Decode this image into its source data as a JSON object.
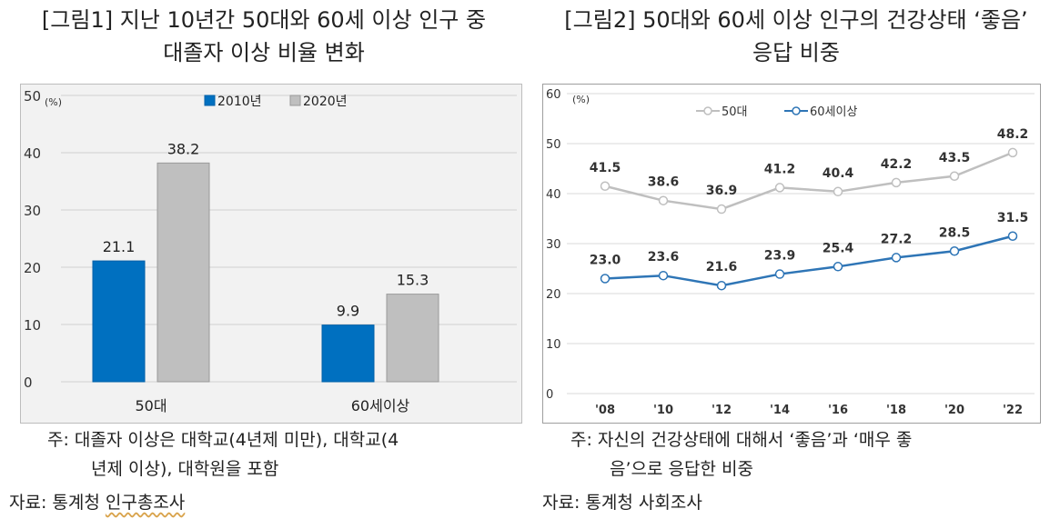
{
  "chart1": {
    "title_line1": "[그림1] 지난 10년간 50대와 60세 이상 인구 중",
    "title_line2": "대졸자 이상 비율 변화",
    "unit": "(%)",
    "note_line1": "주: 대졸자 이상은 대학교(4년제 미만), 대학교(4",
    "note_line2": "년제 이상), 대학원을 포함",
    "source_prefix": "자료: 통계청 ",
    "source_name": "인구총조사"
  },
  "chart2": {
    "title_line1": "[그림2] 50대와 60세 이상 인구의 건강상태 ‘좋음’",
    "title_line2": "응답 비중",
    "unit": "(%)",
    "note_line1": "주: 자신의 건강상태에 대해서 ‘좋음’과 ‘매우 좋",
    "note_line2": "음’으로 응답한 비중",
    "source": "자료: 통계청 사회조사"
  },
  "colors": {
    "blue": "#0070c0",
    "gray": "#bfbfbf",
    "line_gray": "#bfbfbf",
    "line_blue": "#2e75b6"
  },
  "chart_data": [
    {
      "type": "bar",
      "categories": [
        "50대",
        "60세이상"
      ],
      "series": [
        {
          "name": "2010년",
          "values": [
            21.1,
            9.9
          ]
        },
        {
          "name": "2020년",
          "values": [
            38.2,
            15.3
          ]
        }
      ],
      "ylim": [
        0,
        50
      ],
      "yticks": [
        0,
        10,
        20,
        30,
        40,
        50
      ],
      "legend": "top",
      "grid": true
    },
    {
      "type": "line",
      "x": [
        "'08",
        "'10",
        "'12",
        "'14",
        "'16",
        "'18",
        "'20",
        "'22"
      ],
      "series": [
        {
          "name": "50대",
          "values": [
            41.5,
            38.6,
            36.9,
            41.2,
            40.4,
            42.2,
            43.5,
            48.2
          ]
        },
        {
          "name": "60세이상",
          "values": [
            23.0,
            23.6,
            21.6,
            23.9,
            25.4,
            27.2,
            28.5,
            31.5
          ]
        }
      ],
      "ylim": [
        0,
        60
      ],
      "yticks": [
        0,
        10,
        20,
        30,
        40,
        50,
        60
      ],
      "legend": "top",
      "grid": true
    }
  ]
}
